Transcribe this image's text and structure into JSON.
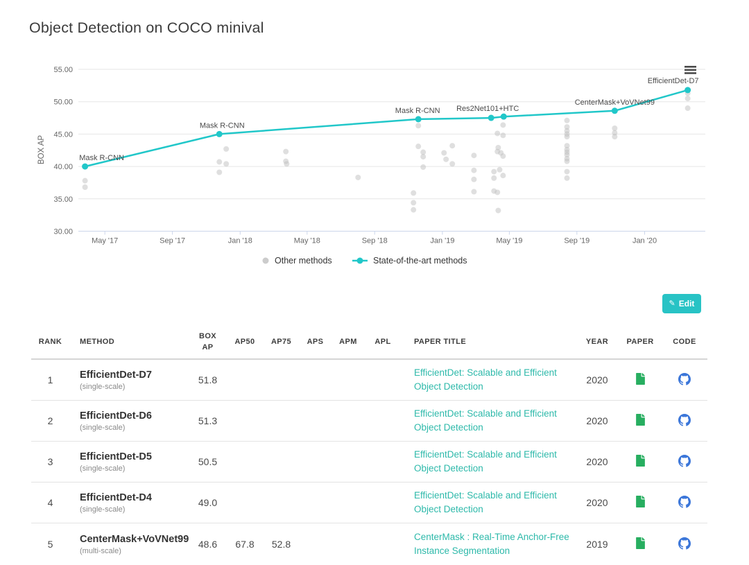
{
  "page": {
    "title": "Object Detection on COCO minival"
  },
  "chart": {
    "y_axis_title": "BOX AP",
    "y_ticks": [
      {
        "label": "55.00",
        "value": 55
      },
      {
        "label": "50.00",
        "value": 50
      },
      {
        "label": "45.00",
        "value": 45
      },
      {
        "label": "40.00",
        "value": 40
      },
      {
        "label": "35.00",
        "value": 35
      },
      {
        "label": "30.00",
        "value": 30
      }
    ],
    "x_ticks": [
      {
        "label": "May '17",
        "value": 2017.331
      },
      {
        "label": "Sep '17",
        "value": 2017.665
      },
      {
        "label": "Jan '18",
        "value": 2018.0
      },
      {
        "label": "May '18",
        "value": 2018.331
      },
      {
        "label": "Sep '18",
        "value": 2018.665
      },
      {
        "label": "Jan '19",
        "value": 2019.0
      },
      {
        "label": "May '19",
        "value": 2019.331
      },
      {
        "label": "Sep '19",
        "value": 2019.665
      },
      {
        "label": "Jan '20",
        "value": 2020.0
      }
    ],
    "legend": [
      {
        "label": "Other methods",
        "marker": "dot",
        "color": "#cccccc"
      },
      {
        "label": "State-of-the-art methods",
        "marker": "line-dot",
        "color": "#21c7c9"
      }
    ],
    "colors": {
      "sota": "#21c7c9",
      "other": "#bfbfbf",
      "grid": "#e6e6e6",
      "axis": "#ccd6eb",
      "tick_text": "#666666",
      "point_label": "#4a4a4a"
    }
  },
  "chart_data": {
    "type": "scatter",
    "title": "Object Detection on COCO minival",
    "xlabel": "",
    "ylabel": "BOX AP",
    "ylim": [
      30,
      55
    ],
    "xlim": [
      2017.2,
      2020.3
    ],
    "grid": true,
    "legend_position": "bottom",
    "series": [
      {
        "name": "Other methods",
        "type": "scatter",
        "points": [
          [
            2017.233,
            37.8
          ],
          [
            2017.233,
            36.8
          ],
          [
            2017.897,
            40.7
          ],
          [
            2017.897,
            39.1
          ],
          [
            2017.931,
            42.7
          ],
          [
            2017.931,
            40.4
          ],
          [
            2018.226,
            42.3
          ],
          [
            2018.226,
            40.8
          ],
          [
            2018.23,
            40.4
          ],
          [
            2018.583,
            38.3
          ],
          [
            2018.857,
            35.9
          ],
          [
            2018.857,
            34.4
          ],
          [
            2018.857,
            33.3
          ],
          [
            2018.881,
            46.3
          ],
          [
            2018.881,
            43.1
          ],
          [
            2018.905,
            42.2
          ],
          [
            2018.905,
            41.5
          ],
          [
            2018.905,
            39.9
          ],
          [
            2019.008,
            42.1
          ],
          [
            2019.018,
            41.1
          ],
          [
            2019.049,
            43.2
          ],
          [
            2019.049,
            40.4
          ],
          [
            2019.156,
            41.7
          ],
          [
            2019.156,
            39.4
          ],
          [
            2019.156,
            38.0
          ],
          [
            2019.156,
            36.1
          ],
          [
            2019.255,
            39.2
          ],
          [
            2019.255,
            38.2
          ],
          [
            2019.255,
            36.2
          ],
          [
            2019.272,
            45.1
          ],
          [
            2019.272,
            42.3
          ],
          [
            2019.272,
            36.0
          ],
          [
            2019.276,
            42.9
          ],
          [
            2019.276,
            33.2
          ],
          [
            2019.283,
            39.5
          ],
          [
            2019.289,
            42.1
          ],
          [
            2019.3,
            46.4
          ],
          [
            2019.3,
            44.8
          ],
          [
            2019.3,
            41.6
          ],
          [
            2019.3,
            38.6
          ],
          [
            2019.616,
            47.1
          ],
          [
            2019.616,
            46.1
          ],
          [
            2019.616,
            45.5
          ],
          [
            2019.616,
            45.0
          ],
          [
            2019.616,
            44.6
          ],
          [
            2019.616,
            43.2
          ],
          [
            2019.616,
            42.6
          ],
          [
            2019.616,
            42.2
          ],
          [
            2019.616,
            41.8
          ],
          [
            2019.616,
            41.2
          ],
          [
            2019.616,
            40.8
          ],
          [
            2019.616,
            39.2
          ],
          [
            2019.616,
            38.2
          ],
          [
            2019.852,
            45.9
          ],
          [
            2019.852,
            45.2
          ],
          [
            2019.852,
            44.6
          ],
          [
            2020.213,
            51.3
          ],
          [
            2020.213,
            50.5
          ],
          [
            2020.213,
            49.0
          ]
        ]
      },
      {
        "name": "State-of-the-art methods",
        "type": "line",
        "points": [
          {
            "x": 2017.233,
            "y": 40.0,
            "label": "Mask R-CNN",
            "dx": 24,
            "dy": -9
          },
          {
            "x": 2017.897,
            "y": 45.0,
            "label": "Mask R-CNN",
            "dx": 4,
            "dy": -9
          },
          {
            "x": 2018.881,
            "y": 47.3,
            "label": "Mask R-CNN",
            "dx": -1,
            "dy": -9
          },
          {
            "x": 2019.241,
            "y": 47.5,
            "label": "Res2Net101+HTC",
            "dx": -5,
            "dy": -10
          },
          {
            "x": 2019.303,
            "y": 47.7,
            "label": "",
            "dx": 0,
            "dy": 0
          },
          {
            "x": 2019.852,
            "y": 48.6,
            "label": "CenterMask+VoVNet99",
            "dx": 0,
            "dy": -9
          },
          {
            "x": 2020.213,
            "y": 51.8,
            "label": "EfficientDet-D7",
            "dx": -21,
            "dy": -10
          }
        ]
      }
    ]
  },
  "toolbar": {
    "edit_label": "Edit"
  },
  "table": {
    "columns": [
      "RANK",
      "METHOD",
      "BOX AP",
      "AP50",
      "AP75",
      "APS",
      "APM",
      "APL",
      "PAPER TITLE",
      "YEAR",
      "PAPER",
      "CODE"
    ],
    "rows": [
      {
        "rank": "1",
        "method": "EfficientDet-D7",
        "method_note": "(single-scale)",
        "box_ap": "51.8",
        "ap50": "",
        "ap75": "",
        "aps": "",
        "apm": "",
        "apl": "",
        "paper_title": "EfficientDet: Scalable and Efficient Object Detection",
        "year": "2020"
      },
      {
        "rank": "2",
        "method": "EfficientDet-D6",
        "method_note": "(single-scale)",
        "box_ap": "51.3",
        "ap50": "",
        "ap75": "",
        "aps": "",
        "apm": "",
        "apl": "",
        "paper_title": "EfficientDet: Scalable and Efficient Object Detection",
        "year": "2020"
      },
      {
        "rank": "3",
        "method": "EfficientDet-D5",
        "method_note": "(single-scale)",
        "box_ap": "50.5",
        "ap50": "",
        "ap75": "",
        "aps": "",
        "apm": "",
        "apl": "",
        "paper_title": "EfficientDet: Scalable and Efficient Object Detection",
        "year": "2020"
      },
      {
        "rank": "4",
        "method": "EfficientDet-D4",
        "method_note": "(single-scale)",
        "box_ap": "49.0",
        "ap50": "",
        "ap75": "",
        "aps": "",
        "apm": "",
        "apl": "",
        "paper_title": "EfficientDet: Scalable and Efficient Object Detection",
        "year": "2020"
      },
      {
        "rank": "5",
        "method": "CenterMask+VoVNet99",
        "method_note": "(multi-scale)",
        "box_ap": "48.6",
        "ap50": "67.8",
        "ap75": "52.8",
        "aps": "",
        "apm": "",
        "apl": "",
        "paper_title": "CenterMask : Real-Time Anchor-Free Instance Segmentation",
        "year": "2019"
      }
    ]
  }
}
